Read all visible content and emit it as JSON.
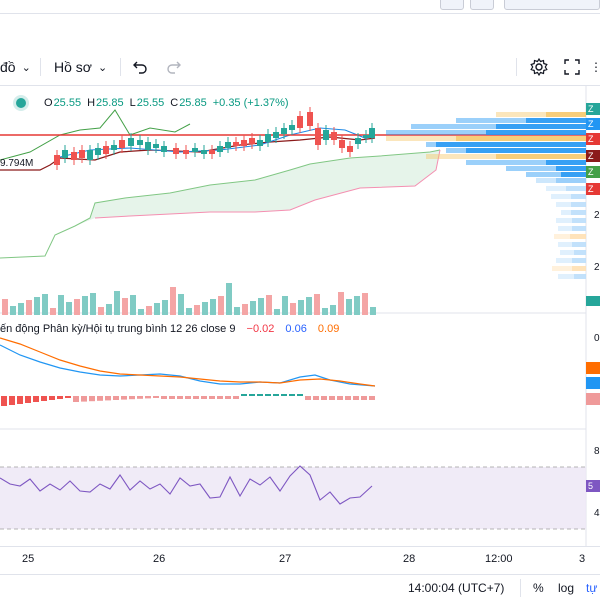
{
  "toolbar": {
    "chart_type_label": "đồ",
    "profile_label": "Hồ sơ"
  },
  "legend": {
    "open_key": "O",
    "open_val": "25.55",
    "high_key": "H",
    "high_val": "25.85",
    "low_key": "L",
    "low_val": "25.55",
    "close_key": "C",
    "close_val": "25.85",
    "change": "+0.35 (+1.37%)"
  },
  "volume_label": "9.794M",
  "macd": {
    "title": "ến động Phân kỳ/Hội tụ trung bình 12 26 close 9",
    "hist": "−0.02",
    "macd": "0.06",
    "signal": "0.09"
  },
  "right_axis": {
    "badge_label": "Z",
    "num_2a": "2",
    "num_2b": "2",
    "num_0": "0",
    "num_8": "8",
    "num_5": "5",
    "num_4": "4"
  },
  "time_axis": [
    "25",
    "26",
    "27",
    "28",
    "12:00",
    "3"
  ],
  "status": {
    "clock": "14:00:04 (UTC+7)",
    "percent": "%",
    "log": "log",
    "auto": "tự"
  },
  "colors": {
    "up": "#26a69a",
    "down": "#ef5350",
    "macd_line": "#2196f3",
    "signal_line": "#ff6d00",
    "rsi_line": "#7e57c2",
    "ichimoku_cloud": "#e6f4ea",
    "price_line": "#e53935"
  },
  "chart_data": {
    "type": "candlestick",
    "x": [
      "25",
      "26",
      "27",
      "28"
    ],
    "ohlc_last": {
      "open": 25.55,
      "high": 25.85,
      "low": 25.55,
      "close": 25.85
    },
    "change": 0.35,
    "change_pct": 1.37,
    "indicators": [
      "Ichimoku",
      "Volume",
      "Volume Profile",
      "MACD 12 26 close 9",
      "RSI"
    ],
    "macd_last": {
      "histogram": -0.02,
      "macd": 0.06,
      "signal": 0.09
    }
  }
}
